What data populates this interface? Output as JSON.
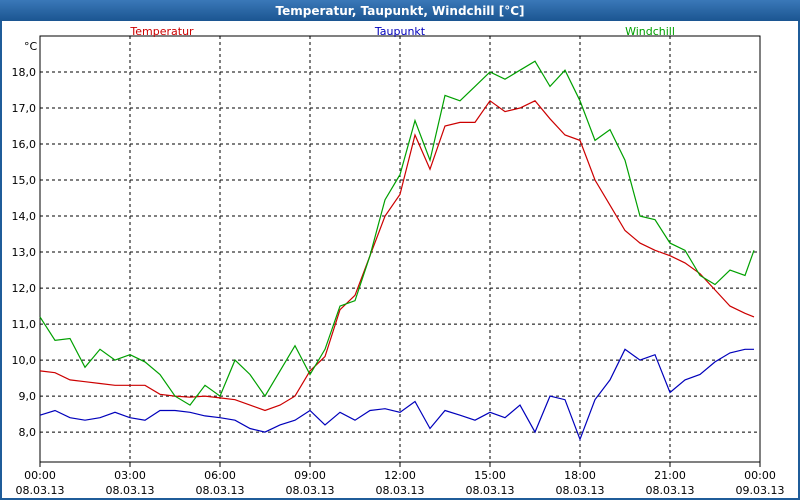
{
  "window_title": "Temperatur, Taupunkt, Windchill [°C]",
  "chart_data": {
    "type": "line",
    "y_unit": "°C",
    "x": [
      0,
      0.5,
      1,
      1.5,
      2,
      2.5,
      3,
      3.5,
      4,
      4.5,
      5,
      5.5,
      6,
      6.5,
      7,
      7.5,
      8,
      8.5,
      9,
      9.5,
      10,
      10.5,
      11,
      11.5,
      12,
      12.5,
      13,
      13.5,
      14,
      14.5,
      15,
      15.5,
      16,
      16.5,
      17,
      17.5,
      18,
      18.5,
      19,
      19.5,
      20,
      20.5,
      21,
      21.5,
      22,
      22.5,
      23,
      23.5,
      23.8
    ],
    "series": [
      {
        "name": "Temperatur",
        "color": "#cc0000",
        "legend_position": "left",
        "values": [
          9.7,
          9.65,
          9.45,
          9.4,
          9.35,
          9.3,
          9.3,
          9.3,
          9.05,
          9.0,
          8.97,
          9.0,
          8.95,
          8.9,
          8.75,
          8.6,
          8.75,
          9.0,
          9.7,
          10.1,
          11.4,
          11.8,
          12.9,
          14.0,
          14.6,
          16.25,
          15.3,
          16.5,
          16.6,
          16.6,
          17.2,
          16.9,
          17.0,
          17.2,
          16.7,
          16.25,
          16.1,
          15.0,
          14.3,
          13.6,
          13.25,
          13.05,
          12.9,
          12.7,
          12.4,
          11.95,
          11.5,
          11.3,
          11.2
        ]
      },
      {
        "name": "Taupunkt",
        "color": "#0000bb",
        "legend_position": "center",
        "values": [
          8.47,
          8.6,
          8.4,
          8.33,
          8.4,
          8.55,
          8.4,
          8.33,
          8.6,
          8.6,
          8.55,
          8.45,
          8.4,
          8.33,
          8.1,
          8.0,
          8.2,
          8.33,
          8.6,
          8.2,
          8.55,
          8.33,
          8.6,
          8.65,
          8.55,
          8.85,
          8.1,
          8.6,
          8.47,
          8.33,
          8.55,
          8.4,
          8.75,
          8.0,
          9.0,
          8.9,
          7.8,
          8.9,
          9.45,
          10.3,
          10.0,
          10.15,
          9.1,
          9.45,
          9.6,
          9.95,
          10.2,
          10.3,
          10.3
        ]
      },
      {
        "name": "Windchill",
        "color": "#00a000",
        "legend_position": "right",
        "values": [
          11.2,
          10.55,
          10.6,
          9.8,
          10.3,
          10.0,
          10.15,
          9.95,
          9.6,
          9.0,
          8.75,
          9.3,
          9.0,
          10.0,
          9.6,
          9.0,
          9.7,
          10.4,
          9.6,
          10.3,
          11.5,
          11.65,
          12.9,
          14.45,
          15.15,
          16.65,
          15.55,
          17.35,
          17.2,
          17.6,
          18.0,
          17.8,
          18.05,
          18.3,
          17.6,
          18.05,
          17.2,
          16.1,
          16.4,
          15.55,
          14.0,
          13.9,
          13.25,
          13.05,
          12.35,
          12.1,
          12.5,
          12.35,
          13.05
        ]
      }
    ],
    "xlim": [
      0,
      24
    ],
    "xticks": [
      {
        "value": 0,
        "label": "00:00",
        "date": "08.03.13"
      },
      {
        "value": 3,
        "label": "03:00",
        "date": "08.03.13"
      },
      {
        "value": 6,
        "label": "06:00",
        "date": "08.03.13"
      },
      {
        "value": 9,
        "label": "09:00",
        "date": "08.03.13"
      },
      {
        "value": 12,
        "label": "12:00",
        "date": "08.03.13"
      },
      {
        "value": 15,
        "label": "15:00",
        "date": "08.03.13"
      },
      {
        "value": 18,
        "label": "18:00",
        "date": "08.03.13"
      },
      {
        "value": 21,
        "label": "21:00",
        "date": "08.03.13"
      },
      {
        "value": 24,
        "label": "00:00",
        "date": "09.03.13"
      }
    ],
    "ylim": [
      7.17,
      19.0
    ],
    "yticks": [
      {
        "value": 8,
        "label": "8,0"
      },
      {
        "value": 9,
        "label": "9,0"
      },
      {
        "value": 10,
        "label": "10,0"
      },
      {
        "value": 11,
        "label": "11,0"
      },
      {
        "value": 12,
        "label": "12,0"
      },
      {
        "value": 13,
        "label": "13,0"
      },
      {
        "value": 14,
        "label": "14,0"
      },
      {
        "value": 15,
        "label": "15,0"
      },
      {
        "value": 16,
        "label": "16,0"
      },
      {
        "value": 17,
        "label": "17,0"
      },
      {
        "value": 18,
        "label": "18,0"
      }
    ],
    "grid": true
  }
}
